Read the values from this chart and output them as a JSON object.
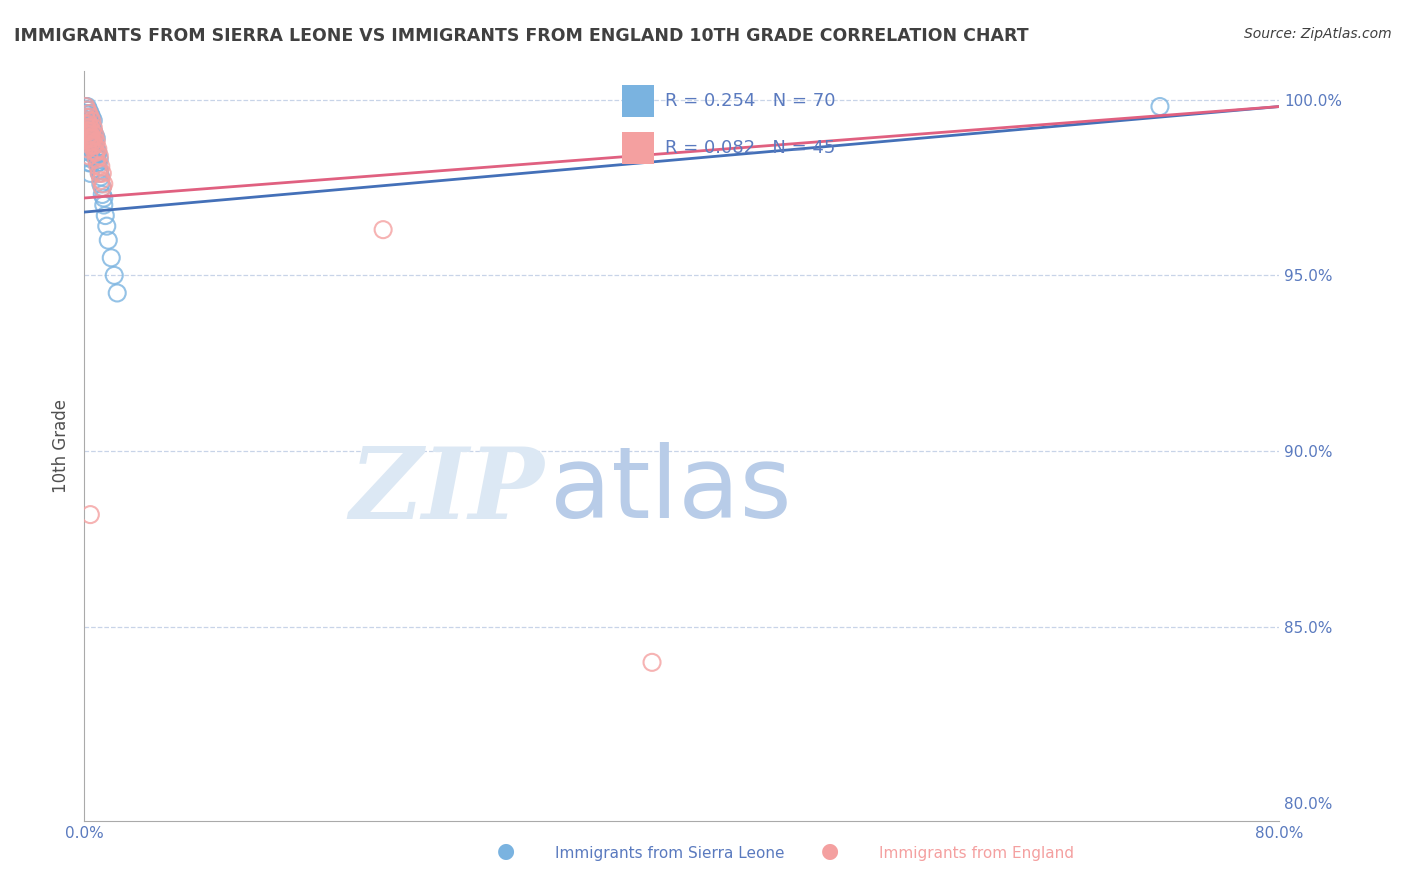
{
  "title": "IMMIGRANTS FROM SIERRA LEONE VS IMMIGRANTS FROM ENGLAND 10TH GRADE CORRELATION CHART",
  "source": "Source: ZipAtlas.com",
  "xlabel_label": "Immigrants from Sierra Leone",
  "xlabel_label2": "Immigrants from England",
  "ylabel": "10th Grade",
  "xlim": [
    0.0,
    0.8
  ],
  "ylim": [
    0.795,
    1.008
  ],
  "legend_r1": "R = 0.254",
  "legend_n1": "N = 70",
  "legend_r2": "R = 0.082",
  "legend_n2": "N = 45",
  "blue_color": "#7ab3e0",
  "pink_color": "#f4a0a0",
  "blue_line_color": "#4470b8",
  "pink_line_color": "#e06080",
  "grid_color": "#c8d4e8",
  "title_color": "#404040",
  "axis_color": "#5a7abf",
  "watermark_zip_color": "#dce8f4",
  "watermark_atlas_color": "#b8cce8",
  "blue_x": [
    0.001,
    0.001,
    0.002,
    0.002,
    0.002,
    0.002,
    0.003,
    0.003,
    0.003,
    0.003,
    0.003,
    0.003,
    0.003,
    0.004,
    0.004,
    0.004,
    0.004,
    0.004,
    0.004,
    0.004,
    0.005,
    0.005,
    0.005,
    0.005,
    0.005,
    0.006,
    0.006,
    0.006,
    0.007,
    0.007,
    0.007,
    0.008,
    0.008,
    0.009,
    0.009,
    0.01,
    0.01,
    0.011,
    0.012,
    0.013,
    0.001,
    0.001,
    0.002,
    0.002,
    0.002,
    0.003,
    0.003,
    0.003,
    0.004,
    0.004,
    0.004,
    0.005,
    0.005,
    0.006,
    0.006,
    0.007,
    0.007,
    0.008,
    0.009,
    0.01,
    0.011,
    0.012,
    0.013,
    0.014,
    0.015,
    0.016,
    0.018,
    0.02,
    0.022,
    0.72
  ],
  "blue_y": [
    0.995,
    0.992,
    0.998,
    0.996,
    0.993,
    0.99,
    0.997,
    0.995,
    0.993,
    0.99,
    0.988,
    0.985,
    0.982,
    0.996,
    0.993,
    0.991,
    0.988,
    0.985,
    0.982,
    0.979,
    0.995,
    0.992,
    0.989,
    0.986,
    0.983,
    0.994,
    0.991,
    0.988,
    0.99,
    0.987,
    0.984,
    0.989,
    0.986,
    0.985,
    0.982,
    0.983,
    0.98,
    0.978,
    0.975,
    0.972,
    0.998,
    0.996,
    0.997,
    0.994,
    0.992,
    0.996,
    0.994,
    0.991,
    0.995,
    0.992,
    0.989,
    0.993,
    0.99,
    0.991,
    0.988,
    0.988,
    0.985,
    0.984,
    0.982,
    0.979,
    0.976,
    0.973,
    0.97,
    0.967,
    0.964,
    0.96,
    0.955,
    0.95,
    0.945,
    0.998
  ],
  "pink_x": [
    0.001,
    0.001,
    0.002,
    0.002,
    0.002,
    0.003,
    0.003,
    0.003,
    0.004,
    0.004,
    0.004,
    0.005,
    0.005,
    0.005,
    0.006,
    0.006,
    0.007,
    0.007,
    0.008,
    0.008,
    0.009,
    0.01,
    0.011,
    0.012,
    0.013,
    0.001,
    0.002,
    0.002,
    0.003,
    0.003,
    0.004,
    0.004,
    0.005,
    0.006,
    0.007,
    0.008,
    0.009,
    0.01,
    0.011,
    0.012,
    0.002,
    0.003,
    0.004,
    0.2,
    0.38
  ],
  "pink_y": [
    0.998,
    0.995,
    0.997,
    0.994,
    0.991,
    0.996,
    0.993,
    0.99,
    0.995,
    0.992,
    0.989,
    0.994,
    0.991,
    0.988,
    0.992,
    0.989,
    0.99,
    0.987,
    0.988,
    0.985,
    0.986,
    0.984,
    0.981,
    0.979,
    0.976,
    0.993,
    0.992,
    0.989,
    0.991,
    0.988,
    0.99,
    0.987,
    0.989,
    0.987,
    0.985,
    0.983,
    0.981,
    0.979,
    0.977,
    0.975,
    0.986,
    0.984,
    0.882,
    0.963,
    0.84
  ],
  "blue_trend_x": [
    0.0,
    0.8
  ],
  "blue_trend_y": [
    0.968,
    0.998
  ],
  "pink_trend_x": [
    0.0,
    0.8
  ],
  "pink_trend_y": [
    0.972,
    0.998
  ]
}
